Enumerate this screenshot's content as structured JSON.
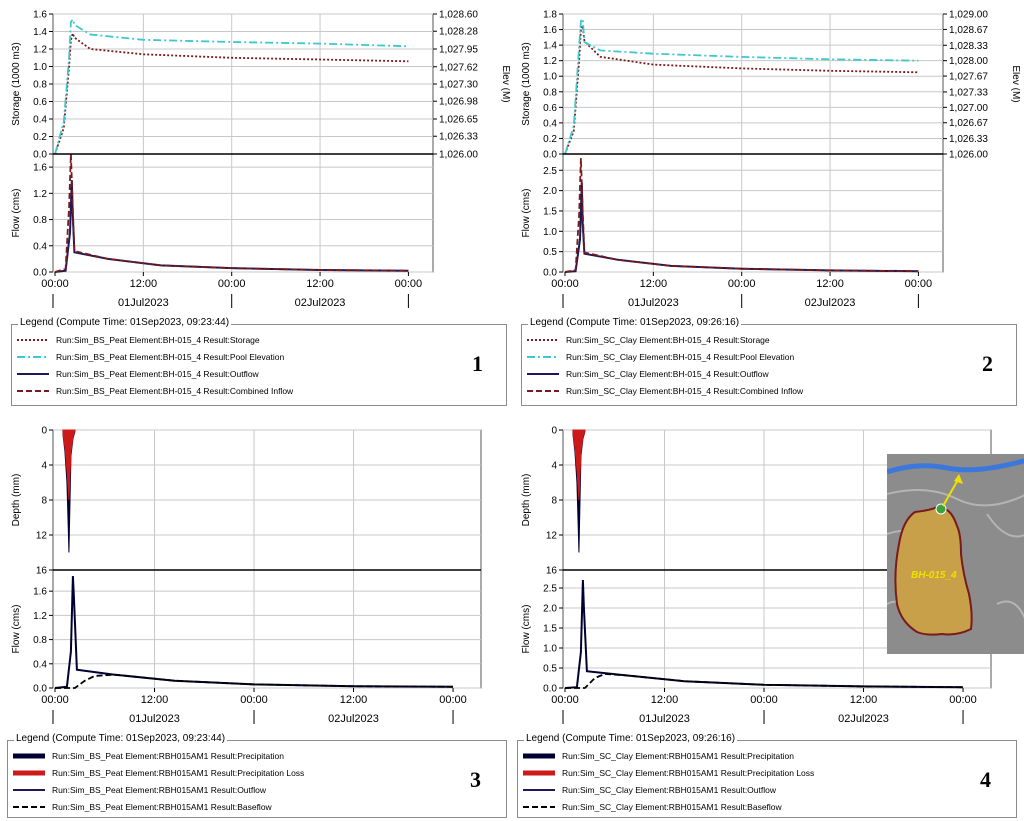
{
  "colors": {
    "storage": "#7a1a1a",
    "pool_elevation": "#3cc8cc",
    "outflow": "#1a1a5a",
    "combined_inflow": "#7a1a1a",
    "precipitation": "#000033",
    "precipitation_loss": "#cc1a1a",
    "baseflow": "#000000",
    "grid": "#c8c8c8"
  },
  "time_axis": {
    "tick_labels": [
      "00:00",
      "12:00",
      "00:00",
      "12:00",
      "00:00"
    ],
    "date_labels": [
      "01Jul2023",
      "02Jul2023"
    ]
  },
  "chart_data": [
    {
      "panel": "1",
      "type": "line",
      "top": {
        "ylabel": "Storage (1000 m3)",
        "yticks": [
          "1.6",
          "1.4",
          "1.2",
          "1.0",
          "0.8",
          "0.6",
          "0.4",
          "0.2",
          "0.0"
        ],
        "ylim": [
          0,
          1.6
        ],
        "right_label": "Elev (M)",
        "right_ticks": [
          "1,028.60",
          "1,028.28",
          "1,027.95",
          "1,027.62",
          "1,027.30",
          "1,026.98",
          "1,026.65",
          "1,026.33",
          "1,026.00"
        ],
        "right_lim": [
          1026.0,
          1028.6
        ],
        "series": [
          {
            "name": "Storage",
            "style": "dotted",
            "x": [
              0,
              0.05,
              0.08,
              0.09,
              0.1,
              0.11,
              0.2,
              0.5,
              1.0,
              1.5,
              2.0
            ],
            "y": [
              0.0,
              0.3,
              1.0,
              1.3,
              1.38,
              1.33,
              1.2,
              1.14,
              1.1,
              1.08,
              1.06
            ]
          },
          {
            "name": "Pool Elevation",
            "style": "dashdot",
            "x": [
              0,
              0.05,
              0.08,
              0.09,
              0.1,
              0.11,
              0.2,
              0.5,
              1.0,
              1.5,
              2.0
            ],
            "y": [
              1026.0,
              1026.6,
              1027.8,
              1028.45,
              1028.5,
              1028.4,
              1028.22,
              1028.12,
              1028.08,
              1028.05,
              1028.0
            ]
          }
        ]
      },
      "bottom": {
        "ylabel": "Flow (cms)",
        "yticks": [
          "1.6",
          "1.2",
          "0.8",
          "0.4",
          "0.0"
        ],
        "ylim": [
          0,
          1.8
        ],
        "series": [
          {
            "name": "Outflow",
            "style": "solid",
            "x": [
              0,
              0.06,
              0.085,
              0.095,
              0.1,
              0.11,
              0.3,
              0.6,
              1.0,
              1.5,
              2.0
            ],
            "y": [
              0,
              0.02,
              0.6,
              1.4,
              0.9,
              0.3,
              0.2,
              0.1,
              0.06,
              0.03,
              0.02
            ]
          },
          {
            "name": "Combined Inflow",
            "style": "dashed",
            "x": [
              0,
              0.06,
              0.08,
              0.09,
              0.1,
              0.11,
              0.3,
              0.6,
              1.0,
              1.5,
              2.0
            ],
            "y": [
              0,
              0.05,
              1.0,
              1.8,
              1.0,
              0.32,
              0.2,
              0.1,
              0.06,
              0.03,
              0.02
            ]
          }
        ]
      },
      "legend_title": "Legend (Compute Time: 01Sep2023, 09:23:44)",
      "legend": [
        {
          "label": "Run:Sim_BS_Peat Element:BH-015_4 Result:Storage",
          "style": "dotted",
          "color_key": "storage"
        },
        {
          "label": "Run:Sim_BS_Peat Element:BH-015_4 Result:Pool Elevation",
          "style": "dashdot",
          "color_key": "pool_elevation"
        },
        {
          "label": "Run:Sim_BS_Peat Element:BH-015_4 Result:Outflow",
          "style": "solid",
          "color_key": "outflow"
        },
        {
          "label": "Run:Sim_BS_Peat Element:BH-015_4 Result:Combined Inflow",
          "style": "dashed",
          "color_key": "combined_inflow"
        }
      ],
      "number": "1"
    },
    {
      "panel": "2",
      "type": "line",
      "top": {
        "ylabel": "Storage (1000 m3)",
        "yticks": [
          "1.8",
          "1.6",
          "1.4",
          "1.2",
          "1.0",
          "0.8",
          "0.6",
          "0.4",
          "0.2",
          "0.0"
        ],
        "ylim": [
          0,
          1.8
        ],
        "right_label": "Elev (M)",
        "right_ticks": [
          "1,029.00",
          "1,028.67",
          "1,028.33",
          "1,028.00",
          "1,027.67",
          "1,027.33",
          "1,027.00",
          "1,026.67",
          "1,026.33",
          "1,026.00"
        ],
        "right_lim": [
          1026.0,
          1029.0
        ],
        "series": [
          {
            "name": "Storage",
            "style": "dotted",
            "x": [
              0,
              0.05,
              0.08,
              0.09,
              0.1,
              0.11,
              0.2,
              0.5,
              1.0,
              1.5,
              2.0
            ],
            "y": [
              0.0,
              0.3,
              1.2,
              1.6,
              1.65,
              1.45,
              1.25,
              1.15,
              1.1,
              1.07,
              1.05
            ]
          },
          {
            "name": "Pool Elevation",
            "style": "dashdot",
            "x": [
              0,
              0.05,
              0.08,
              0.09,
              0.1,
              0.11,
              0.2,
              0.5,
              1.0,
              1.5,
              2.0
            ],
            "y": [
              1026.0,
              1026.6,
              1028.3,
              1028.85,
              1028.9,
              1028.4,
              1028.22,
              1028.15,
              1028.08,
              1028.03,
              1028.0
            ]
          }
        ]
      },
      "bottom": {
        "ylabel": "Flow (cms)",
        "yticks": [
          "2.5",
          "2.0",
          "1.5",
          "1.0",
          "0.5",
          "0.0"
        ],
        "ylim": [
          0,
          2.9
        ],
        "series": [
          {
            "name": "Outflow",
            "style": "solid",
            "x": [
              0,
              0.06,
              0.085,
              0.095,
              0.1,
              0.11,
              0.3,
              0.6,
              1.0,
              1.5,
              2.0
            ],
            "y": [
              0,
              0.02,
              0.8,
              2.2,
              1.2,
              0.45,
              0.3,
              0.15,
              0.08,
              0.04,
              0.02
            ]
          },
          {
            "name": "Combined Inflow",
            "style": "dashed",
            "x": [
              0,
              0.06,
              0.08,
              0.09,
              0.1,
              0.11,
              0.3,
              0.6,
              1.0,
              1.5,
              2.0
            ],
            "y": [
              0,
              0.05,
              1.4,
              2.8,
              1.5,
              0.48,
              0.3,
              0.15,
              0.08,
              0.04,
              0.02
            ]
          }
        ]
      },
      "legend_title": "Legend (Compute Time: 01Sep2023, 09:26:16)",
      "legend": [
        {
          "label": "Run:Sim_SC_Clay Element:BH-015_4 Result:Storage",
          "style": "dotted",
          "color_key": "storage"
        },
        {
          "label": "Run:Sim_SC_Clay Element:BH-015_4 Result:Pool Elevation",
          "style": "dashdot",
          "color_key": "pool_elevation"
        },
        {
          "label": "Run:Sim_SC_Clay Element:BH-015_4 Result:Outflow",
          "style": "solid",
          "color_key": "outflow"
        },
        {
          "label": "Run:Sim_SC_Clay Element:BH-015_4 Result:Combined Inflow",
          "style": "dashed",
          "color_key": "combined_inflow"
        }
      ],
      "number": "2"
    },
    {
      "panel": "3",
      "type": "line",
      "top": {
        "ylabel": "Depth (mm)",
        "yticks": [
          "0",
          "4",
          "8",
          "12",
          "16"
        ],
        "ylim": [
          0,
          16
        ],
        "inverted": true,
        "series": [
          {
            "name": "Precipitation",
            "style": "hyetograph",
            "x": [
              0.04,
              0.05,
              0.06,
              0.07,
              0.08,
              0.09,
              0.1
            ],
            "y": [
              0.5,
              2.5,
              6.0,
              14.0,
              3.0,
              1.0,
              0.2
            ]
          },
          {
            "name": "Precipitation Loss",
            "style": "hyetograph",
            "x": [
              0.04,
              0.05,
              0.06,
              0.07,
              0.08,
              0.09,
              0.1
            ],
            "y": [
              0.4,
              2.0,
              4.5,
              8.0,
              2.5,
              0.8,
              0.1
            ]
          }
        ]
      },
      "bottom": {
        "ylabel": "Flow (cms)",
        "yticks": [
          "1.6",
          "1.2",
          "0.8",
          "0.4",
          "0.0"
        ],
        "ylim": [
          0,
          1.95
        ],
        "series": [
          {
            "name": "Outflow",
            "style": "solid",
            "x": [
              0,
              0.06,
              0.08,
              0.09,
              0.095,
              0.11,
              0.3,
              0.6,
              1.0,
              1.5,
              2.0
            ],
            "y": [
              0,
              0.02,
              0.6,
              1.85,
              1.5,
              0.3,
              0.22,
              0.12,
              0.06,
              0.03,
              0.02
            ]
          },
          {
            "name": "Baseflow",
            "style": "dashed",
            "x": [
              0,
              0.1,
              0.15,
              0.2,
              0.3,
              0.6,
              1.0,
              1.5,
              2.0
            ],
            "y": [
              0,
              0.0,
              0.12,
              0.2,
              0.22,
              0.12,
              0.06,
              0.03,
              0.02
            ]
          }
        ]
      },
      "legend_title": "Legend (Compute Time: 01Sep2023, 09:23:44)",
      "legend": [
        {
          "label": "Run:Sim_BS_Peat Element:RBH015AM1 Result:Precipitation",
          "style": "thick",
          "color_key": "precipitation"
        },
        {
          "label": "Run:Sim_BS_Peat Element:RBH015AM1 Result:Precipitation Loss",
          "style": "thick",
          "color_key": "precipitation_loss"
        },
        {
          "label": "Run:Sim_BS_Peat Element:RBH015AM1 Result:Outflow",
          "style": "solid",
          "color_key": "outflow"
        },
        {
          "label": "Run:Sim_BS_Peat Element:RBH015AM1 Result:Baseflow",
          "style": "dashed",
          "color_key": "baseflow"
        }
      ],
      "number": "3"
    },
    {
      "panel": "4",
      "type": "line",
      "top": {
        "ylabel": "Depth (mm)",
        "yticks": [
          "0",
          "4",
          "8",
          "12",
          "16"
        ],
        "ylim": [
          0,
          16
        ],
        "inverted": true,
        "series": [
          {
            "name": "Precipitation",
            "style": "hyetograph",
            "x": [
              0.04,
              0.05,
              0.06,
              0.07,
              0.08,
              0.09,
              0.1
            ],
            "y": [
              0.5,
              2.5,
              6.0,
              14.0,
              3.0,
              1.0,
              0.2
            ]
          },
          {
            "name": "Precipitation Loss",
            "style": "hyetograph",
            "x": [
              0.04,
              0.05,
              0.06,
              0.07,
              0.08,
              0.09,
              0.1
            ],
            "y": [
              0.4,
              2.0,
              4.5,
              8.0,
              2.5,
              0.8,
              0.1
            ]
          }
        ]
      },
      "bottom": {
        "ylabel": "Flow (cms)",
        "yticks": [
          "2.5",
          "2.0",
          "1.5",
          "1.0",
          "0.5",
          "0.0"
        ],
        "ylim": [
          0,
          2.95
        ],
        "series": [
          {
            "name": "Outflow",
            "style": "solid",
            "x": [
              0,
              0.06,
              0.08,
              0.09,
              0.095,
              0.11,
              0.3,
              0.6,
              1.0,
              1.5,
              2.0
            ],
            "y": [
              0,
              0.02,
              0.9,
              2.7,
              2.0,
              0.42,
              0.32,
              0.17,
              0.08,
              0.04,
              0.02
            ]
          },
          {
            "name": "Baseflow",
            "style": "dashed",
            "x": [
              0,
              0.1,
              0.15,
              0.2,
              0.3,
              0.6,
              1.0,
              1.5,
              2.0
            ],
            "y": [
              0,
              0.0,
              0.25,
              0.35,
              0.32,
              0.17,
              0.08,
              0.04,
              0.02
            ]
          }
        ]
      },
      "legend_title": "Legend (Compute Time: 01Sep2023, 09:26:16)",
      "legend": [
        {
          "label": "Run:Sim_SC_Clay Element:RBH015AM1 Result:Precipitation",
          "style": "thick",
          "color_key": "precipitation"
        },
        {
          "label": "Run:Sim_SC_Clay Element:RBH015AM1 Result:Precipitation Loss",
          "style": "thick",
          "color_key": "precipitation_loss"
        },
        {
          "label": "Run:Sim_SC_Clay Element:RBH015AM1 Result:Outflow",
          "style": "solid",
          "color_key": "outflow"
        },
        {
          "label": "Run:Sim_SC_Clay Element:RBH015AM1 Result:Baseflow",
          "style": "dashed",
          "color_key": "baseflow"
        }
      ],
      "number": "4",
      "map_inset": {
        "label": "BH-015_4"
      }
    }
  ]
}
